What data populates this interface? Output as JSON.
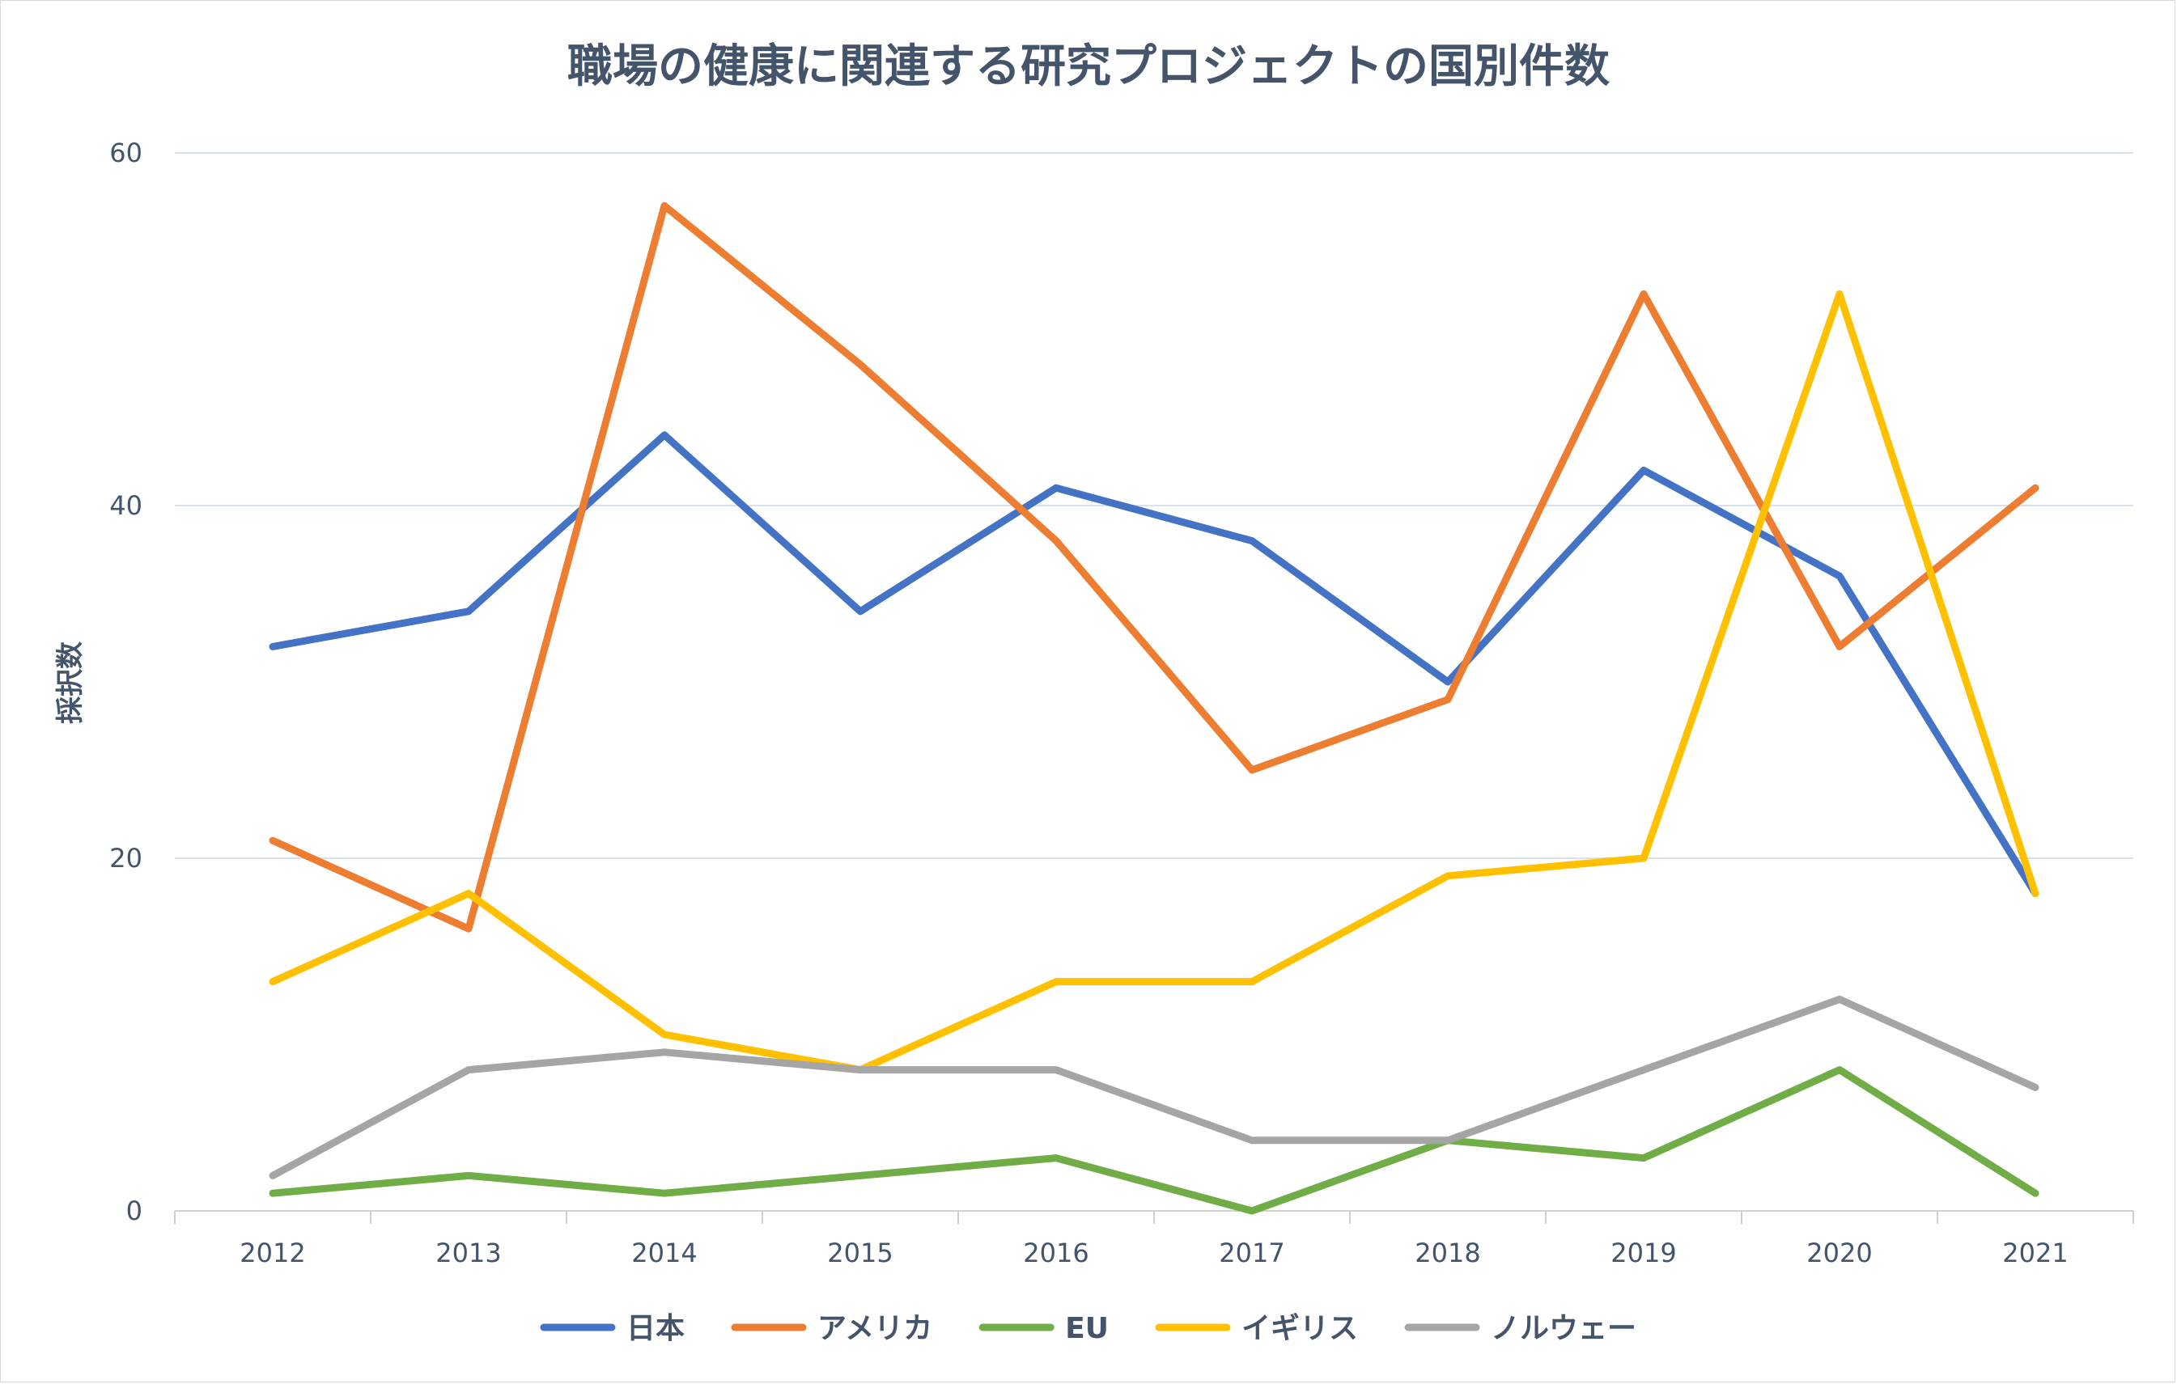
{
  "chart_data": {
    "type": "line",
    "title": "職場の健康に関連する研究プロジェクトの国別件数",
    "xlabel": "",
    "ylabel": "採択数",
    "ylim": [
      0,
      60
    ],
    "yticks": [
      "0",
      "20",
      "40",
      "60"
    ],
    "grid": true,
    "legend_position": "bottom",
    "categories": [
      "2012",
      "2013",
      "2014",
      "2015",
      "2016",
      "2017",
      "2018",
      "2019",
      "2020",
      "2021"
    ],
    "series": [
      {
        "name": "日本",
        "color": "#4472c4",
        "values": [
          32,
          34,
          44,
          34,
          41,
          38,
          30,
          42,
          36,
          18
        ]
      },
      {
        "name": "アメリカ",
        "color": "#ed7d31",
        "values": [
          21,
          16,
          57,
          48,
          38,
          25,
          29,
          52,
          32,
          41
        ]
      },
      {
        "name": "EU",
        "color": "#70ad47",
        "values": [
          1,
          2,
          1,
          2,
          3,
          0,
          4,
          3,
          8,
          1
        ]
      },
      {
        "name": "イギリス",
        "color": "#ffc000",
        "values": [
          13,
          18,
          10,
          8,
          13,
          13,
          19,
          20,
          52,
          18
        ]
      },
      {
        "name": "ノルウェー",
        "color": "#a5a5a5",
        "values": [
          2,
          8,
          9,
          8,
          8,
          4,
          4,
          8,
          12,
          7
        ]
      }
    ]
  }
}
